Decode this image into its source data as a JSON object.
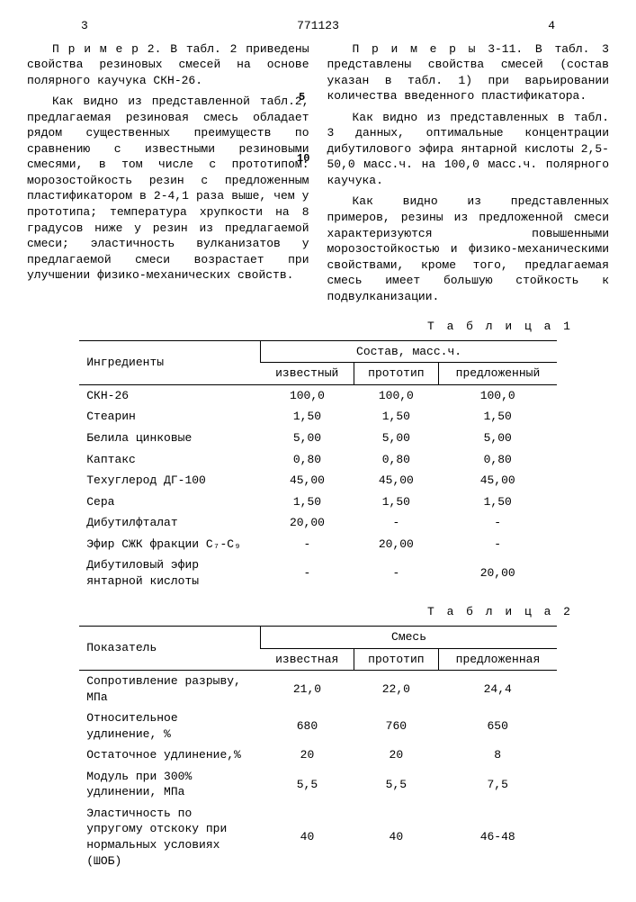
{
  "header": {
    "page_left": "3",
    "doc_number": "771123",
    "page_right": "4",
    "line_num_5": "5",
    "line_num_10": "10"
  },
  "left_col": {
    "p1": "П р и м е р 2. В табл. 2 приведены свойства резиновых смесей на основе полярного каучука СКН-26.",
    "p2": "Как видно из представленной табл.2, предлагаемая резиновая смесь обладает рядом существенных преимуществ по сравнению с известными резиновыми смесями, в том числе с прототипом: морозостойкость резин с предложенным пластификатором в 2-4,1 раза выше, чем у прототипа; температура хрупкости на 8 градусов ниже у резин из предлагаемой смеси; эластичность вулканизатов у предлагаемой смеси возрастает при улучшении физико-механических свойств."
  },
  "right_col": {
    "p1": "П р и м е р ы 3-11. В табл. 3 представлены свойства смесей (состав указан в табл. 1) при варьировании количества введенного пластификатора.",
    "p2": "Как видно из представленных в табл. 3 данных, оптимальные концентрации дибутилового эфира янтарной кислоты 2,5-50,0 масс.ч. на 100,0 масс.ч. полярного каучука.",
    "p3": "Как видно из представленных примеров, резины из предложенной смеси характеризуются повышенными морозостойкостью и физико-механическими свойствами, кроме того, предлагаемая смесь имеет большую стойкость к подвулканизации."
  },
  "table1": {
    "label": "Т а б л и ц а 1",
    "col_header": "Ингредиенты",
    "group_header": "Состав, масс.ч.",
    "sub_headers": [
      "известный",
      "прототип",
      "предложенный"
    ],
    "rows": [
      {
        "label": "СКН-26",
        "c1": "100,0",
        "c2": "100,0",
        "c3": "100,0"
      },
      {
        "label": "Стеарин",
        "c1": "1,50",
        "c2": "1,50",
        "c3": "1,50"
      },
      {
        "label": "Белила цинковые",
        "c1": "5,00",
        "c2": "5,00",
        "c3": "5,00"
      },
      {
        "label": "Каптакс",
        "c1": "0,80",
        "c2": "0,80",
        "c3": "0,80"
      },
      {
        "label": "Техуглерод ДГ-100",
        "c1": "45,00",
        "c2": "45,00",
        "c3": "45,00"
      },
      {
        "label": "Сера",
        "c1": "1,50",
        "c2": "1,50",
        "c3": "1,50"
      },
      {
        "label": "Дибутилфталат",
        "c1": "20,00",
        "c2": "-",
        "c3": "-"
      },
      {
        "label": "Эфир СЖК фракции С₇-С₉",
        "c1": "-",
        "c2": "20,00",
        "c3": "-"
      },
      {
        "label": "Дибутиловый эфир янтарной кислоты",
        "c1": "-",
        "c2": "-",
        "c3": "20,00"
      }
    ]
  },
  "table2": {
    "label": "Т а б л и ц а 2",
    "col_header": "Показатель",
    "group_header": "Смесь",
    "sub_headers": [
      "известная",
      "прототип",
      "предложенная"
    ],
    "rows": [
      {
        "label": "Сопротивление разрыву, МПа",
        "c1": "21,0",
        "c2": "22,0",
        "c3": "24,4"
      },
      {
        "label": "Относительное удлинение, %",
        "c1": "680",
        "c2": "760",
        "c3": "650"
      },
      {
        "label": "Остаточное удлинение,%",
        "c1": "20",
        "c2": "20",
        "c3": "8"
      },
      {
        "label": "Модуль при 300% удлинении, МПа",
        "c1": "5,5",
        "c2": "5,5",
        "c3": "7,5"
      },
      {
        "label": "Эластичность по упругому отскоку при нормальных условиях (ШОБ)",
        "c1": "40",
        "c2": "40",
        "c3": "46-48"
      }
    ]
  }
}
